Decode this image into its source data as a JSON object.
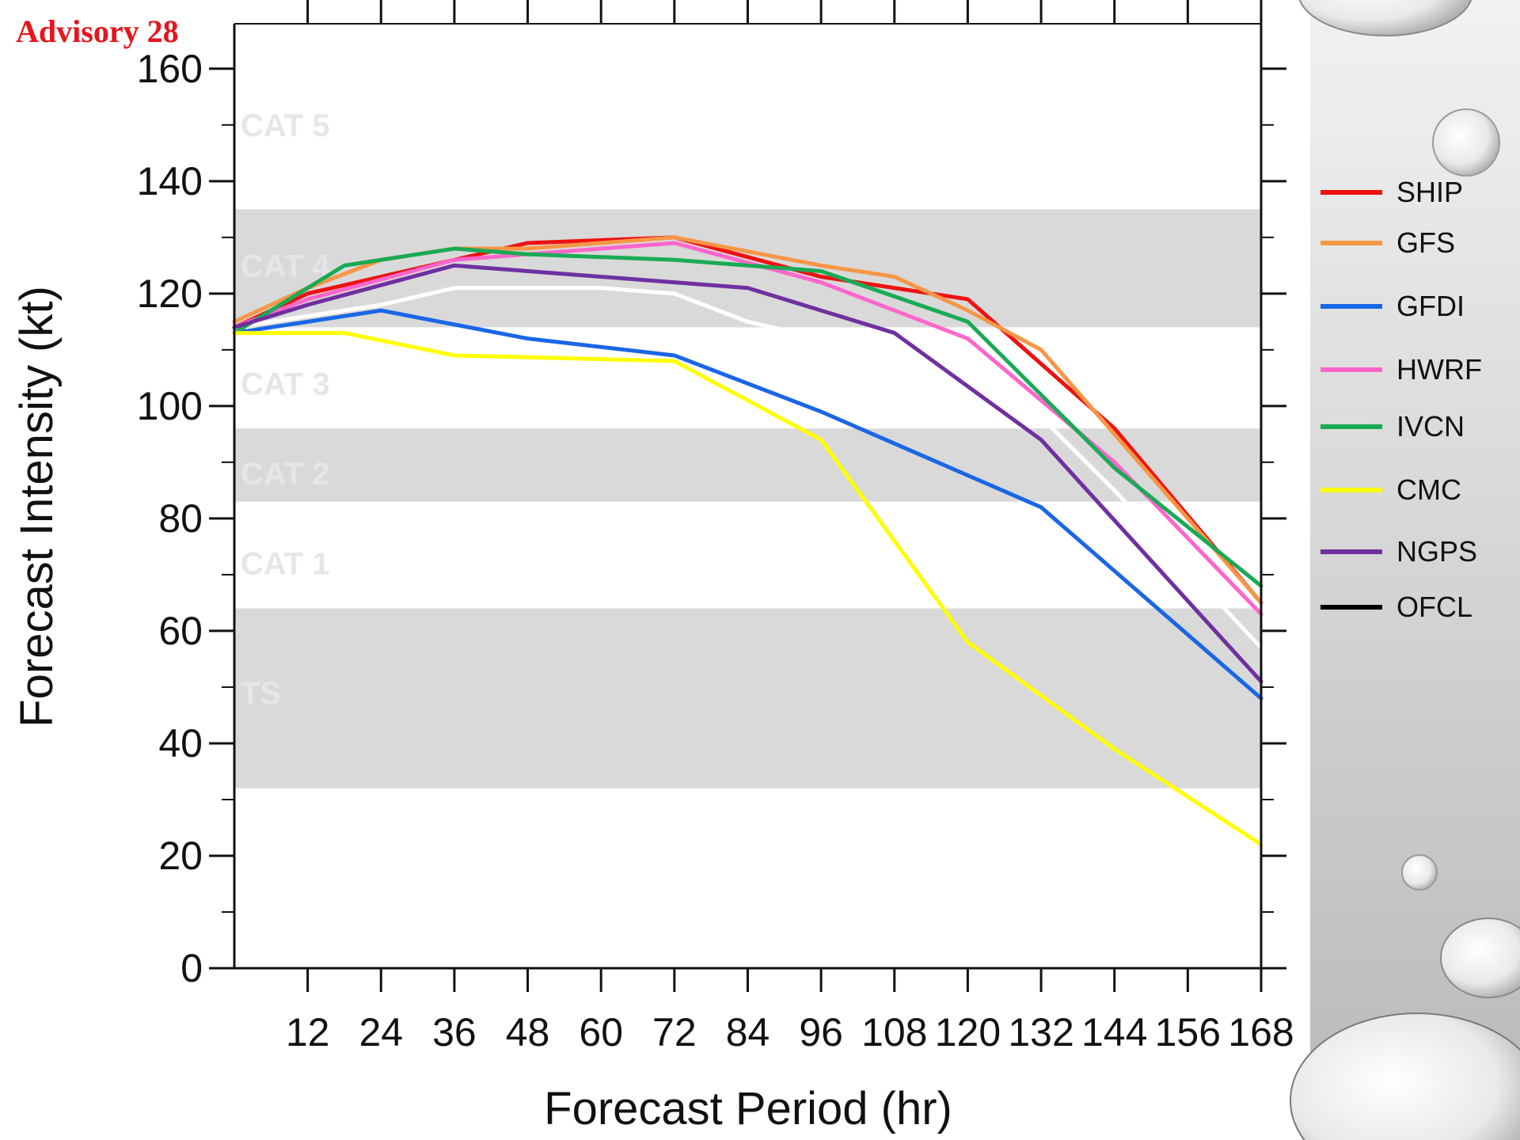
{
  "advisory": "Advisory 28",
  "colors": {
    "band": "#d9d9d9",
    "category_text": "#e6e6e6",
    "advisory": "#e8141c",
    "side_panel": "#d8d8d8"
  },
  "chart_data": {
    "type": "line",
    "title": "",
    "xlabel": "Forecast Period (hr)",
    "ylabel": "Forecast Intensity (kt)",
    "xlim": [
      0,
      168
    ],
    "ylim": [
      0,
      168
    ],
    "x_ticks": [
      12,
      24,
      36,
      48,
      60,
      72,
      84,
      96,
      108,
      120,
      132,
      144,
      156,
      168
    ],
    "x_tick_labels": [
      "12",
      "24",
      "36",
      "48",
      "60",
      "72",
      "84",
      "96",
      "108",
      "120",
      "132",
      "144",
      "156",
      "168"
    ],
    "y_ticks": [
      0,
      20,
      40,
      60,
      80,
      100,
      120,
      140,
      160
    ],
    "y_tick_labels": [
      "0",
      "20",
      "40",
      "60",
      "80",
      "100",
      "120",
      "140",
      "160"
    ],
    "grid": false,
    "legend_position": "right",
    "bands": [
      {
        "label": "CAT 5",
        "from": 137,
        "to": 168,
        "shaded": false,
        "label_y": 150
      },
      {
        "label": "CAT 4",
        "from": 114,
        "to": 135,
        "shaded": true,
        "label_y": 125
      },
      {
        "label": "CAT 3",
        "from": 96,
        "to": 114,
        "shaded": false,
        "label_y": 104
      },
      {
        "label": "CAT 2",
        "from": 83,
        "to": 96,
        "shaded": true,
        "label_y": 88
      },
      {
        "label": "CAT 1",
        "from": 64,
        "to": 83,
        "shaded": false,
        "label_y": 72
      },
      {
        "label": "TS",
        "from": 32,
        "to": 64,
        "shaded": true,
        "label_y": 49
      }
    ],
    "series": [
      {
        "name": "SHIP",
        "color": "#ee1111",
        "x": [
          0,
          12,
          36,
          48,
          72,
          96,
          120,
          144,
          168
        ],
        "y": [
          114,
          120,
          126,
          129,
          130,
          123,
          119,
          96,
          65
        ]
      },
      {
        "name": "GFS",
        "color": "#f79646",
        "x": [
          0,
          12,
          24,
          36,
          48,
          72,
          96,
          108,
          120,
          132,
          168
        ],
        "y": [
          115,
          121,
          126,
          128,
          128,
          130,
          125,
          123,
          117,
          110,
          65
        ]
      },
      {
        "name": "GFDI",
        "color": "#1a66e6",
        "x": [
          0,
          6,
          24,
          48,
          72,
          96,
          132,
          168
        ],
        "y": [
          113,
          114,
          117,
          112,
          109,
          99,
          82,
          48
        ]
      },
      {
        "name": "HWRF",
        "color": "#ff66cc",
        "x": [
          0,
          12,
          36,
          48,
          72,
          96,
          120,
          144,
          168
        ],
        "y": [
          114,
          119,
          126,
          127,
          129,
          122,
          112,
          90,
          63
        ]
      },
      {
        "name": "IVCN",
        "color": "#1aaa55",
        "x": [
          0,
          18,
          36,
          48,
          72,
          96,
          120,
          144,
          168
        ],
        "y": [
          113,
          125,
          128,
          127,
          126,
          124,
          115,
          89,
          68
        ]
      },
      {
        "name": "CMC",
        "color": "#ffff00",
        "x": [
          0,
          18,
          36,
          72,
          96,
          108,
          120,
          144,
          168
        ],
        "y": [
          113,
          113,
          109,
          108,
          94,
          76,
          58,
          39,
          22
        ]
      },
      {
        "name": "NGPS",
        "color": "#7030a0",
        "x": [
          0,
          12,
          36,
          48,
          72,
          84,
          108,
          132,
          168
        ],
        "y": [
          114,
          118,
          125,
          124,
          122,
          121,
          113,
          94,
          51
        ]
      },
      {
        "name": "OFCL",
        "color": "#000000",
        "x": [],
        "y": []
      }
    ],
    "unlabeled_series": [
      {
        "color": "#ffffff",
        "x": [
          0,
          24,
          36,
          60,
          72,
          84,
          96,
          108,
          120,
          132,
          144,
          168
        ],
        "y": [
          114,
          118,
          121,
          121,
          120,
          115,
          112,
          108,
          102,
          98,
          85,
          57
        ]
      }
    ]
  }
}
